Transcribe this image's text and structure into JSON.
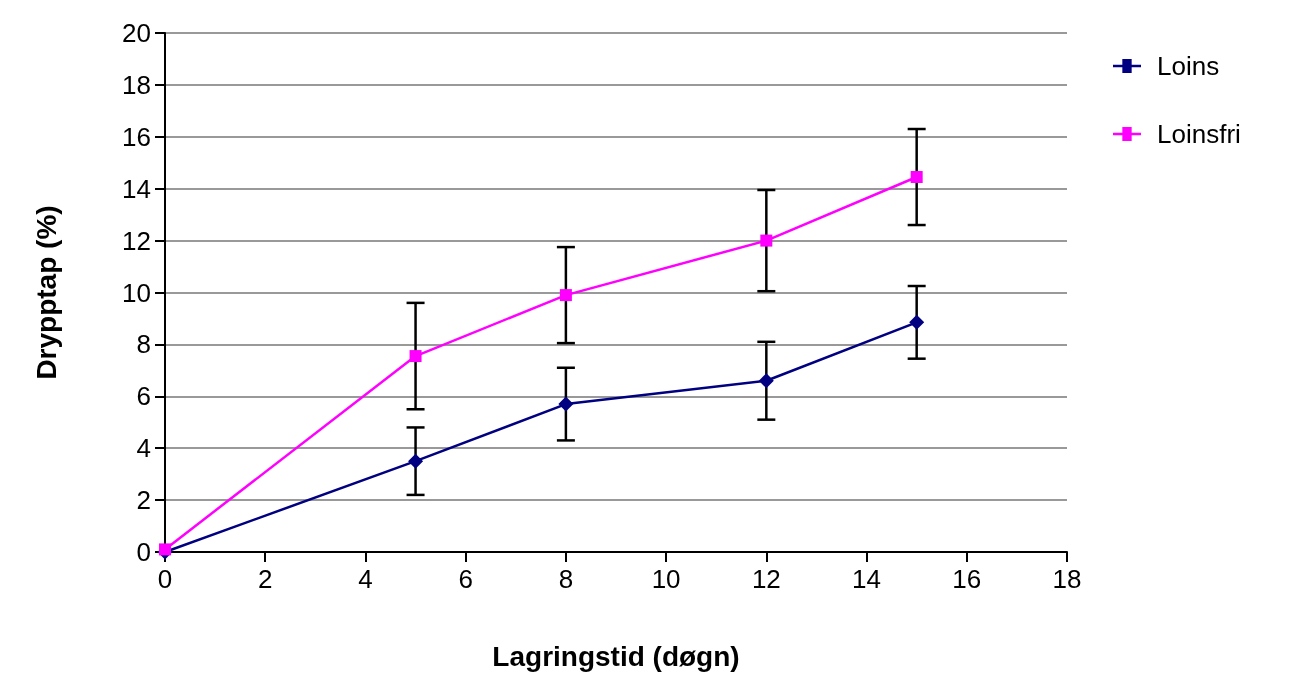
{
  "chart_data": {
    "type": "line",
    "xlabel": "Lagringstid (døgn)",
    "ylabel": "Drypptap (%)",
    "xlim": [
      0,
      18
    ],
    "xticks": [
      0,
      2,
      4,
      6,
      8,
      10,
      12,
      14,
      16,
      18
    ],
    "ylim": [
      0,
      20
    ],
    "yticks": [
      0,
      2,
      4,
      6,
      8,
      10,
      12,
      14,
      16,
      18,
      20
    ],
    "grid": "y",
    "legend": "top right",
    "x": [
      0,
      5,
      8,
      12,
      15
    ],
    "series": [
      {
        "name": "Loins",
        "color": "#000080",
        "marker": "diamond",
        "values": [
          0,
          3.5,
          5.7,
          6.6,
          8.85
        ],
        "errors": [
          null,
          1.3,
          1.4,
          1.5,
          1.4
        ]
      },
      {
        "name": "Loinsfri",
        "color": "#ff00ff",
        "marker": "square",
        "values": [
          0.1,
          7.55,
          9.9,
          12,
          14.45
        ],
        "errors": [
          null,
          2.05,
          1.85,
          1.95,
          1.85
        ]
      }
    ]
  }
}
